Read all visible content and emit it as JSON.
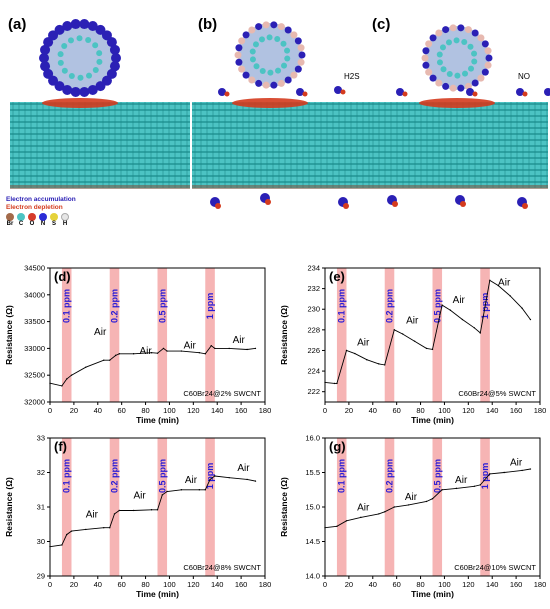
{
  "top": {
    "panels": [
      {
        "label": "(a)",
        "molecule_note": ""
      },
      {
        "label": "(b)",
        "molecule_note": "H2S"
      },
      {
        "label": "(c)",
        "molecule_note": "NO"
      }
    ],
    "legend": {
      "accumulation": "Electron accumulation",
      "depletion": "Electron depletion",
      "elements": [
        "Br",
        "C",
        "O",
        "N",
        "S",
        "H"
      ],
      "accumulation_color": "#2b20b5",
      "depletion_color": "#d43b1e"
    },
    "colors": {
      "nanotube": "#4cc3c3",
      "bond": "#1a8a8a"
    }
  },
  "chart_data": [
    {
      "id": "d",
      "type": "line",
      "panel_label": "(d)",
      "annotation": "C60Br24@2% SWCNT",
      "xlabel": "Time (min)",
      "ylabel": "Resistance (Ω)",
      "xlim": [
        0,
        180
      ],
      "ylim": [
        32000,
        34500
      ],
      "xticks": [
        0,
        20,
        40,
        60,
        80,
        100,
        120,
        140,
        160,
        180
      ],
      "yticks": [
        32000,
        32500,
        33000,
        33500,
        34000,
        34500
      ],
      "ytick_labels": [
        "32000",
        "32500",
        "33000",
        "33500",
        "34000",
        "34500"
      ],
      "gas_labels": [
        "0.1 ppm",
        "0.2 ppm",
        "0.5 ppm",
        "1 ppm"
      ],
      "gas_windows": [
        [
          10,
          18
        ],
        [
          50,
          58
        ],
        [
          90,
          98
        ],
        [
          130,
          138
        ]
      ],
      "air_labels": [
        {
          "x": 42,
          "y": 33250,
          "text": "Air"
        },
        {
          "x": 80,
          "y": 32900,
          "text": "Air"
        },
        {
          "x": 117,
          "y": 33000,
          "text": "Air"
        },
        {
          "x": 158,
          "y": 33100,
          "text": "Air"
        }
      ],
      "series": [
        {
          "x": [
            0,
            10,
            14,
            18,
            30,
            45,
            50,
            55,
            58,
            70,
            85,
            90,
            95,
            98,
            110,
            125,
            130,
            135,
            138,
            150,
            165,
            172
          ],
          "y": [
            32350,
            32300,
            32430,
            32500,
            32650,
            32780,
            32780,
            32870,
            32900,
            32900,
            32920,
            32910,
            33000,
            32950,
            32950,
            32920,
            32900,
            33050,
            33000,
            33000,
            32980,
            33000
          ]
        }
      ]
    },
    {
      "id": "e",
      "type": "line",
      "panel_label": "(e)",
      "annotation": "C60Br24@5% SWCNT",
      "xlabel": "Time (min)",
      "ylabel": "Resistance (Ω)",
      "xlim": [
        0,
        180
      ],
      "ylim": [
        221,
        234
      ],
      "xticks": [
        0,
        20,
        40,
        60,
        80,
        100,
        120,
        140,
        160,
        180
      ],
      "yticks": [
        222,
        224,
        226,
        228,
        230,
        232,
        234
      ],
      "ytick_labels": [
        "222",
        "224",
        "226",
        "228",
        "230",
        "232",
        "234"
      ],
      "gas_labels": [
        "0.1 ppm",
        "0.2 ppm",
        "0.5 ppm",
        "1 ppm"
      ],
      "gas_windows": [
        [
          10,
          18
        ],
        [
          50,
          58
        ],
        [
          90,
          98
        ],
        [
          130,
          138
        ]
      ],
      "air_labels": [
        {
          "x": 32,
          "y": 226.5,
          "text": "Air"
        },
        {
          "x": 73,
          "y": 228.6,
          "text": "Air"
        },
        {
          "x": 112,
          "y": 230.6,
          "text": "Air"
        },
        {
          "x": 150,
          "y": 232.3,
          "text": "Air"
        }
      ],
      "series": [
        {
          "x": [
            0,
            8,
            10,
            18,
            25,
            35,
            45,
            50,
            58,
            65,
            75,
            85,
            90,
            98,
            105,
            115,
            125,
            130,
            138,
            145,
            155,
            165,
            172
          ],
          "y": [
            222.9,
            222.8,
            222.8,
            226,
            225.7,
            225.1,
            224.7,
            224.6,
            228,
            227.6,
            226.9,
            226.2,
            226.1,
            230.4,
            229.9,
            229.0,
            228.2,
            227.7,
            232.8,
            232.3,
            231.3,
            230.1,
            229.0
          ]
        }
      ]
    },
    {
      "id": "f",
      "type": "line",
      "panel_label": "(f)",
      "annotation": "C60Br24@8% SWCNT",
      "xlabel": "Time (min)",
      "ylabel": "Resistance (Ω)",
      "xlim": [
        0,
        180
      ],
      "ylim": [
        29,
        33
      ],
      "xticks": [
        0,
        20,
        40,
        60,
        80,
        100,
        120,
        140,
        160,
        180
      ],
      "yticks": [
        29,
        30,
        31,
        32,
        33
      ],
      "ytick_labels": [
        "29",
        "30",
        "31",
        "32",
        "33"
      ],
      "gas_labels": [
        "0.1 ppm",
        "0.2 ppm",
        "0.5 ppm",
        "1 ppm"
      ],
      "gas_windows": [
        [
          10,
          18
        ],
        [
          50,
          58
        ],
        [
          90,
          98
        ],
        [
          130,
          138
        ]
      ],
      "air_labels": [
        {
          "x": 35,
          "y": 30.7,
          "text": "Air"
        },
        {
          "x": 75,
          "y": 31.25,
          "text": "Air"
        },
        {
          "x": 118,
          "y": 31.7,
          "text": "Air"
        },
        {
          "x": 162,
          "y": 32.05,
          "text": "Air"
        }
      ],
      "series": [
        {
          "x": [
            0,
            10,
            14,
            18,
            30,
            45,
            50,
            54,
            58,
            70,
            85,
            90,
            94,
            98,
            110,
            125,
            130,
            134,
            138,
            150,
            165,
            172
          ],
          "y": [
            29.85,
            29.9,
            30.2,
            30.3,
            30.35,
            30.4,
            30.4,
            30.8,
            30.9,
            30.9,
            30.92,
            30.92,
            31.35,
            31.45,
            31.5,
            31.5,
            31.5,
            31.8,
            31.9,
            31.85,
            31.8,
            31.75
          ]
        }
      ]
    },
    {
      "id": "g",
      "type": "line",
      "panel_label": "(g)",
      "annotation": "C60Br24@10% SWCNT",
      "xlabel": "Time (min)",
      "ylabel": "Resistance (Ω)",
      "xlim": [
        0,
        180
      ],
      "ylim": [
        14.0,
        16.0
      ],
      "xticks": [
        0,
        20,
        40,
        60,
        80,
        100,
        120,
        140,
        160,
        180
      ],
      "yticks": [
        14.0,
        14.5,
        15.0,
        15.5,
        16.0
      ],
      "ytick_labels": [
        "14.0",
        "14.5",
        "15.0",
        "15.5",
        "16.0"
      ],
      "gas_labels": [
        "0.1 ppm",
        "0.2 ppm",
        "0.5 ppm",
        "1 ppm"
      ],
      "gas_windows": [
        [
          10,
          18
        ],
        [
          50,
          58
        ],
        [
          90,
          98
        ],
        [
          130,
          138
        ]
      ],
      "air_labels": [
        {
          "x": 32,
          "y": 14.95,
          "text": "Air"
        },
        {
          "x": 72,
          "y": 15.1,
          "text": "Air"
        },
        {
          "x": 114,
          "y": 15.35,
          "text": "Air"
        },
        {
          "x": 160,
          "y": 15.6,
          "text": "Air"
        }
      ],
      "series": [
        {
          "x": [
            0,
            10,
            18,
            30,
            45,
            50,
            58,
            70,
            85,
            90,
            98,
            110,
            125,
            130,
            138,
            150,
            165,
            172
          ],
          "y": [
            14.7,
            14.72,
            14.8,
            14.85,
            14.9,
            14.93,
            15.0,
            15.03,
            15.08,
            15.12,
            15.25,
            15.27,
            15.3,
            15.32,
            15.48,
            15.5,
            15.53,
            15.55
          ]
        }
      ]
    }
  ]
}
